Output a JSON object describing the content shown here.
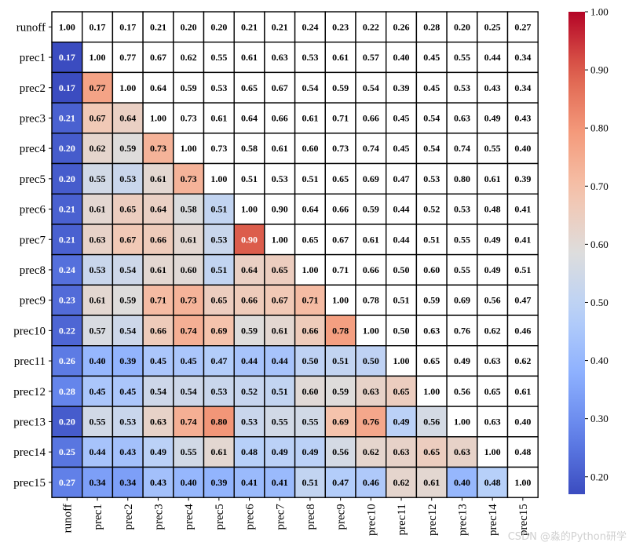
{
  "chart_data": {
    "type": "heatmap",
    "labels": [
      "runoff",
      "prec1",
      "prec2",
      "prec3",
      "prec4",
      "prec5",
      "prec6",
      "prec7",
      "prec8",
      "prec9",
      "prec10",
      "prec11",
      "prec12",
      "prec13",
      "prec14",
      "prec15"
    ],
    "matrix": [
      [
        1.0,
        0.17,
        0.17,
        0.21,
        0.2,
        0.2,
        0.21,
        0.21,
        0.24,
        0.23,
        0.22,
        0.26,
        0.28,
        0.2,
        0.25,
        0.27
      ],
      [
        0.17,
        1.0,
        0.77,
        0.67,
        0.62,
        0.55,
        0.61,
        0.63,
        0.53,
        0.61,
        0.57,
        0.4,
        0.45,
        0.55,
        0.44,
        0.34
      ],
      [
        0.17,
        0.77,
        1.0,
        0.64,
        0.59,
        0.53,
        0.65,
        0.67,
        0.54,
        0.59,
        0.54,
        0.39,
        0.45,
        0.53,
        0.43,
        0.34
      ],
      [
        0.21,
        0.67,
        0.64,
        1.0,
        0.73,
        0.61,
        0.64,
        0.66,
        0.61,
        0.71,
        0.66,
        0.45,
        0.54,
        0.63,
        0.49,
        0.43
      ],
      [
        0.2,
        0.62,
        0.59,
        0.73,
        1.0,
        0.73,
        0.58,
        0.61,
        0.6,
        0.73,
        0.74,
        0.45,
        0.54,
        0.74,
        0.55,
        0.4
      ],
      [
        0.2,
        0.55,
        0.53,
        0.61,
        0.73,
        1.0,
        0.51,
        0.53,
        0.51,
        0.65,
        0.69,
        0.47,
        0.53,
        0.8,
        0.61,
        0.39
      ],
      [
        0.21,
        0.61,
        0.65,
        0.64,
        0.58,
        0.51,
        1.0,
        0.9,
        0.64,
        0.66,
        0.59,
        0.44,
        0.52,
        0.53,
        0.48,
        0.41
      ],
      [
        0.21,
        0.63,
        0.67,
        0.66,
        0.61,
        0.53,
        0.9,
        1.0,
        0.65,
        0.67,
        0.61,
        0.44,
        0.51,
        0.55,
        0.49,
        0.41
      ],
      [
        0.24,
        0.53,
        0.54,
        0.61,
        0.6,
        0.51,
        0.64,
        0.65,
        1.0,
        0.71,
        0.66,
        0.5,
        0.6,
        0.55,
        0.49,
        0.51
      ],
      [
        0.23,
        0.61,
        0.59,
        0.71,
        0.73,
        0.65,
        0.66,
        0.67,
        0.71,
        1.0,
        0.78,
        0.51,
        0.59,
        0.69,
        0.56,
        0.47
      ],
      [
        0.22,
        0.57,
        0.54,
        0.66,
        0.74,
        0.69,
        0.59,
        0.61,
        0.66,
        0.78,
        1.0,
        0.5,
        0.63,
        0.76,
        0.62,
        0.46
      ],
      [
        0.26,
        0.4,
        0.39,
        0.45,
        0.45,
        0.47,
        0.44,
        0.44,
        0.5,
        0.51,
        0.5,
        1.0,
        0.65,
        0.49,
        0.63,
        0.62
      ],
      [
        0.28,
        0.45,
        0.45,
        0.54,
        0.54,
        0.53,
        0.52,
        0.51,
        0.6,
        0.59,
        0.63,
        0.65,
        1.0,
        0.56,
        0.65,
        0.61
      ],
      [
        0.2,
        0.55,
        0.53,
        0.63,
        0.74,
        0.8,
        0.53,
        0.55,
        0.55,
        0.69,
        0.76,
        0.49,
        0.56,
        1.0,
        0.63,
        0.4
      ],
      [
        0.25,
        0.44,
        0.43,
        0.49,
        0.55,
        0.61,
        0.48,
        0.49,
        0.49,
        0.56,
        0.62,
        0.63,
        0.65,
        0.63,
        1.0,
        0.48
      ],
      [
        0.27,
        0.34,
        0.34,
        0.43,
        0.4,
        0.39,
        0.41,
        0.41,
        0.51,
        0.47,
        0.46,
        0.62,
        0.61,
        0.4,
        0.48,
        1.0
      ]
    ],
    "colormap": "coolwarm",
    "vmin": 0.17,
    "vmax": 1.0,
    "display": "lower triangle colored, diagonal and upper triangle white, all values annotated",
    "colorbar_ticks": [
      "0.20",
      "0.30",
      "0.40",
      "0.50",
      "0.60",
      "0.70",
      "0.80",
      "0.90",
      "1.00"
    ],
    "colorbar_tick_values": [
      0.2,
      0.3,
      0.4,
      0.5,
      0.6,
      0.7,
      0.8,
      0.9,
      1.0
    ],
    "title": "",
    "xlabel": "",
    "ylabel": ""
  },
  "watermark": "CSDN @淼的Python研学"
}
